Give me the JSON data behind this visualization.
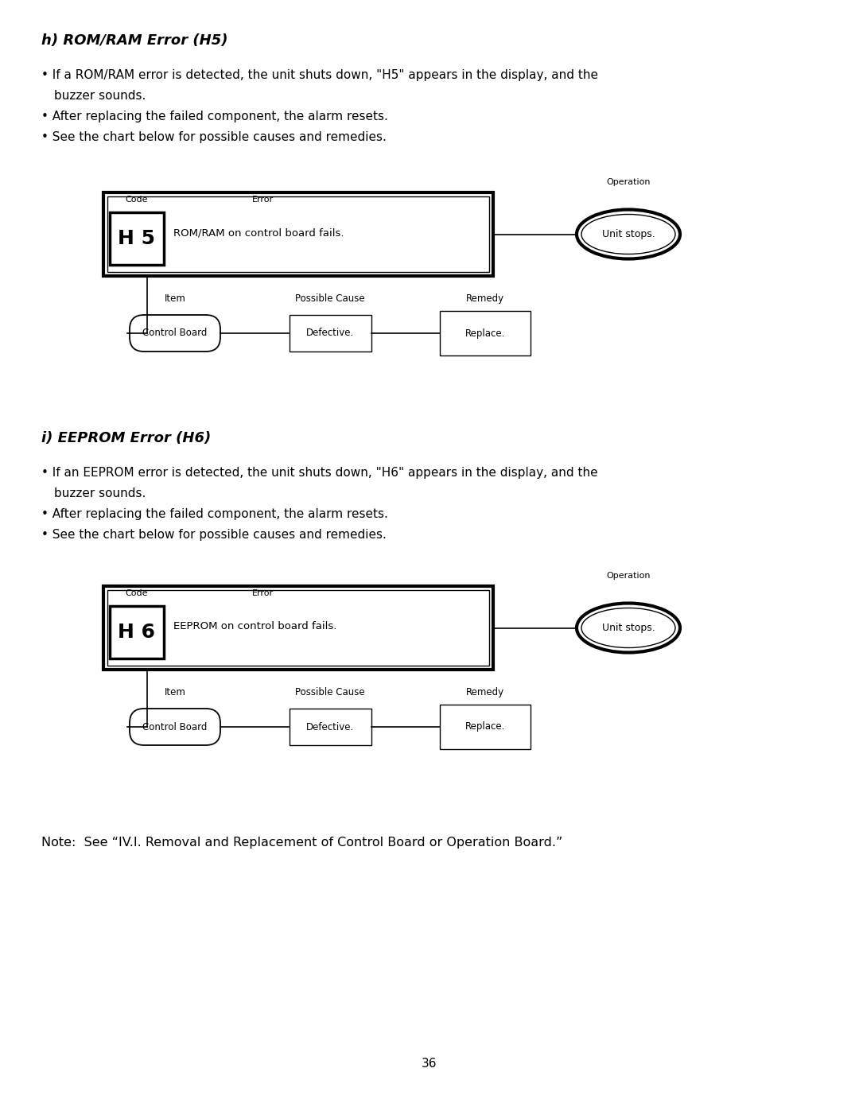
{
  "title_h5": "h) ROM/RAM Error (H5)",
  "title_h6": "i) EEPROM Error (H6)",
  "bullet_h5_1a": "• If a ROM/RAM error is detected, the unit shuts down, \"H5\" appears in the display, and the",
  "bullet_h5_1b": "  buzzer sounds.",
  "bullet_h5_2": "• After replacing the failed component, the alarm resets.",
  "bullet_h5_3": "• See the chart below for possible causes and remedies.",
  "bullet_h6_1a": "• If an EEPROM error is detected, the unit shuts down, \"H6\" appears in the display, and the",
  "bullet_h6_1b": "  buzzer sounds.",
  "bullet_h6_2": "• After replacing the failed component, the alarm resets.",
  "bullet_h6_3": "• See the chart below for possible causes and remedies.",
  "code_h5": "H 5",
  "code_h6": "H 6",
  "error_h5": "ROM/RAM on control board fails.",
  "error_h6": "EEPROM on control board fails.",
  "code_label": "Code",
  "error_label": "Error",
  "operation_label": "Operation",
  "operation_text": "Unit stops.",
  "item_label": "Item",
  "possible_cause_label": "Possible Cause",
  "remedy_label": "Remedy",
  "item_text": "Control Board",
  "cause_text": "Defective.",
  "remedy_text": "Replace.",
  "note_text": "Note:  See “IV.I. Removal and Replacement of Control Board or Operation Board.”",
  "page_number": "36",
  "bg_color": "#ffffff",
  "text_color": "#000000"
}
